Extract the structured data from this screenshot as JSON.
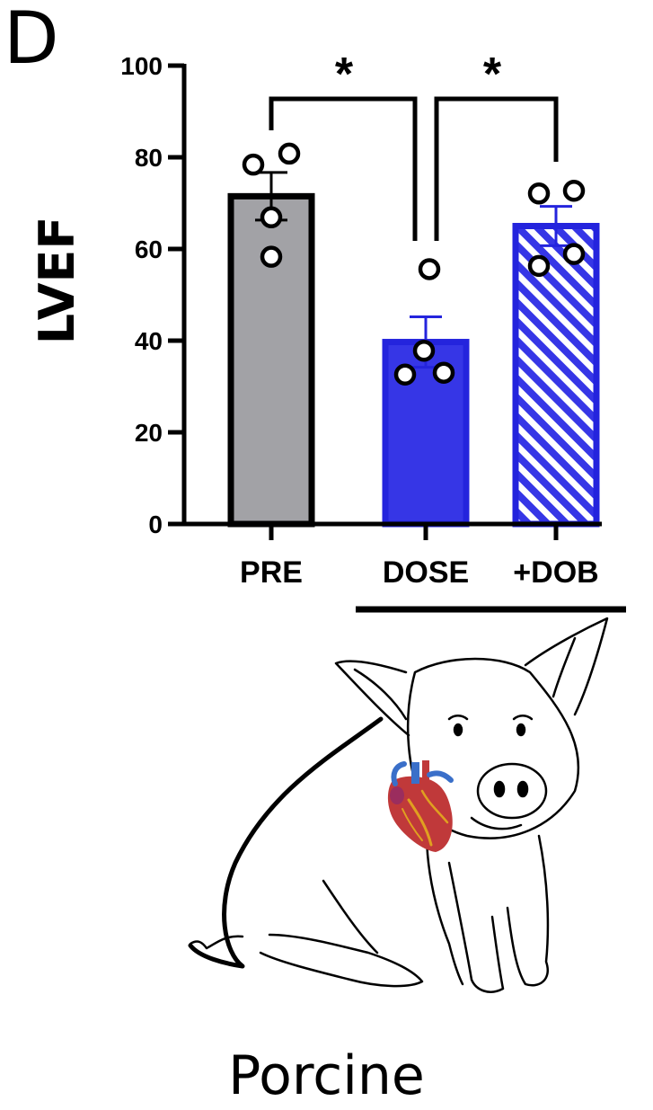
{
  "panel_label": "D",
  "chart_data": {
    "type": "bar",
    "ylabel": "LVEF",
    "ylim": [
      0,
      100
    ],
    "yticks": [
      0,
      20,
      40,
      60,
      80,
      100
    ],
    "categories": [
      "PRE",
      "DOSE",
      "+DOB"
    ],
    "values": [
      71.5,
      39.7,
      65.0
    ],
    "sem": [
      5.2,
      5.5,
      4.3
    ],
    "points": [
      [
        78.4,
        80.8,
        66.9,
        58.3
      ],
      [
        55.6,
        37.8,
        32.6,
        33.0
      ],
      [
        72.1,
        72.7,
        56.3,
        58.9
      ]
    ],
    "fills": [
      "#a2a2a6",
      "#3636e6",
      "hatched"
    ],
    "edge_colors": [
      "#000000",
      "#2424dd",
      "#2424dd"
    ],
    "group_bracket": {
      "from": "DOSE",
      "to": "+DOB"
    },
    "significance": [
      {
        "from": "PRE",
        "to": "DOSE",
        "label": "*"
      },
      {
        "from": "DOSE",
        "to": "+DOB",
        "label": "*"
      }
    ]
  },
  "illustration": {
    "subject": "pig-with-heart"
  },
  "caption": "Porcine"
}
